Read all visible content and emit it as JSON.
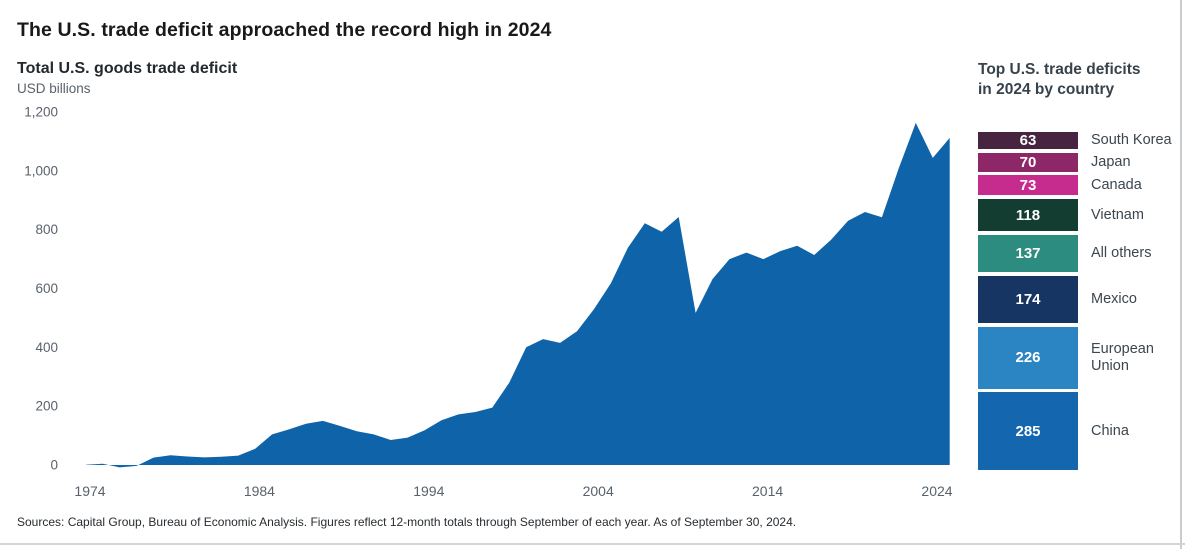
{
  "page": {
    "title": "The U.S. trade deficit approached the record high in 2024",
    "source": "Sources: Capital Group, Bureau of Economic Analysis. Figures reflect 12-month totals through September of each year. As of September 30, 2024."
  },
  "chart_data": [
    {
      "type": "area",
      "title": "Total U.S. goods trade deficit",
      "ylabel": "USD billions",
      "xlabel": "",
      "grid": false,
      "area_color": "#0F63A9",
      "ylim": [
        0,
        1200
      ],
      "yticks": [
        0,
        200,
        400,
        600,
        800,
        1000,
        1200
      ],
      "ytick_labels": [
        "0",
        "200",
        "400",
        "600",
        "800",
        "1,000",
        "1,200"
      ],
      "xticks": [
        1974,
        1984,
        1994,
        2004,
        2014,
        2024
      ],
      "xtick_labels": [
        "1974",
        "1984",
        "1994",
        "2004",
        "2014",
        "2024"
      ],
      "x": [
        1973,
        1974,
        1975,
        1976,
        1977,
        1978,
        1979,
        1980,
        1981,
        1982,
        1983,
        1984,
        1985,
        1986,
        1987,
        1988,
        1989,
        1990,
        1991,
        1992,
        1993,
        1994,
        1995,
        1996,
        1997,
        1998,
        1999,
        2000,
        2001,
        2002,
        2003,
        2004,
        2005,
        2006,
        2007,
        2008,
        2009,
        2010,
        2011,
        2012,
        2013,
        2014,
        2015,
        2016,
        2017,
        2018,
        2019,
        2020,
        2021,
        2022,
        2023,
        2024
      ],
      "values": [
        1,
        4,
        -8,
        -3,
        25,
        33,
        29,
        26,
        28,
        32,
        55,
        104,
        121,
        140,
        150,
        133,
        115,
        104,
        85,
        93,
        118,
        152,
        172,
        180,
        195,
        280,
        400,
        428,
        415,
        455,
        530,
        618,
        738,
        822,
        793,
        843,
        517,
        632,
        700,
        722,
        700,
        727,
        745,
        714,
        766,
        830,
        860,
        842,
        1010,
        1163,
        1044,
        1112
      ]
    },
    {
      "type": "bar",
      "orientation": "horizontal-stack",
      "title": "Top U.S. trade deficits in 2024 by country",
      "unit": "USD billions",
      "bars": [
        {
          "label": "South Korea",
          "value": 63,
          "color": "#47243F"
        },
        {
          "label": "Japan",
          "value": 70,
          "color": "#8E2767"
        },
        {
          "label": "Canada",
          "value": 73,
          "color": "#C62B8E"
        },
        {
          "label": "Vietnam",
          "value": 118,
          "color": "#123D30"
        },
        {
          "label": "All others",
          "value": 137,
          "color": "#2D8C80"
        },
        {
          "label": "Mexico",
          "value": 174,
          "color": "#173562"
        },
        {
          "label": "European Union",
          "value": 226,
          "color": "#2B85C2"
        },
        {
          "label": "China",
          "value": 285,
          "color": "#1467AE"
        }
      ]
    }
  ]
}
